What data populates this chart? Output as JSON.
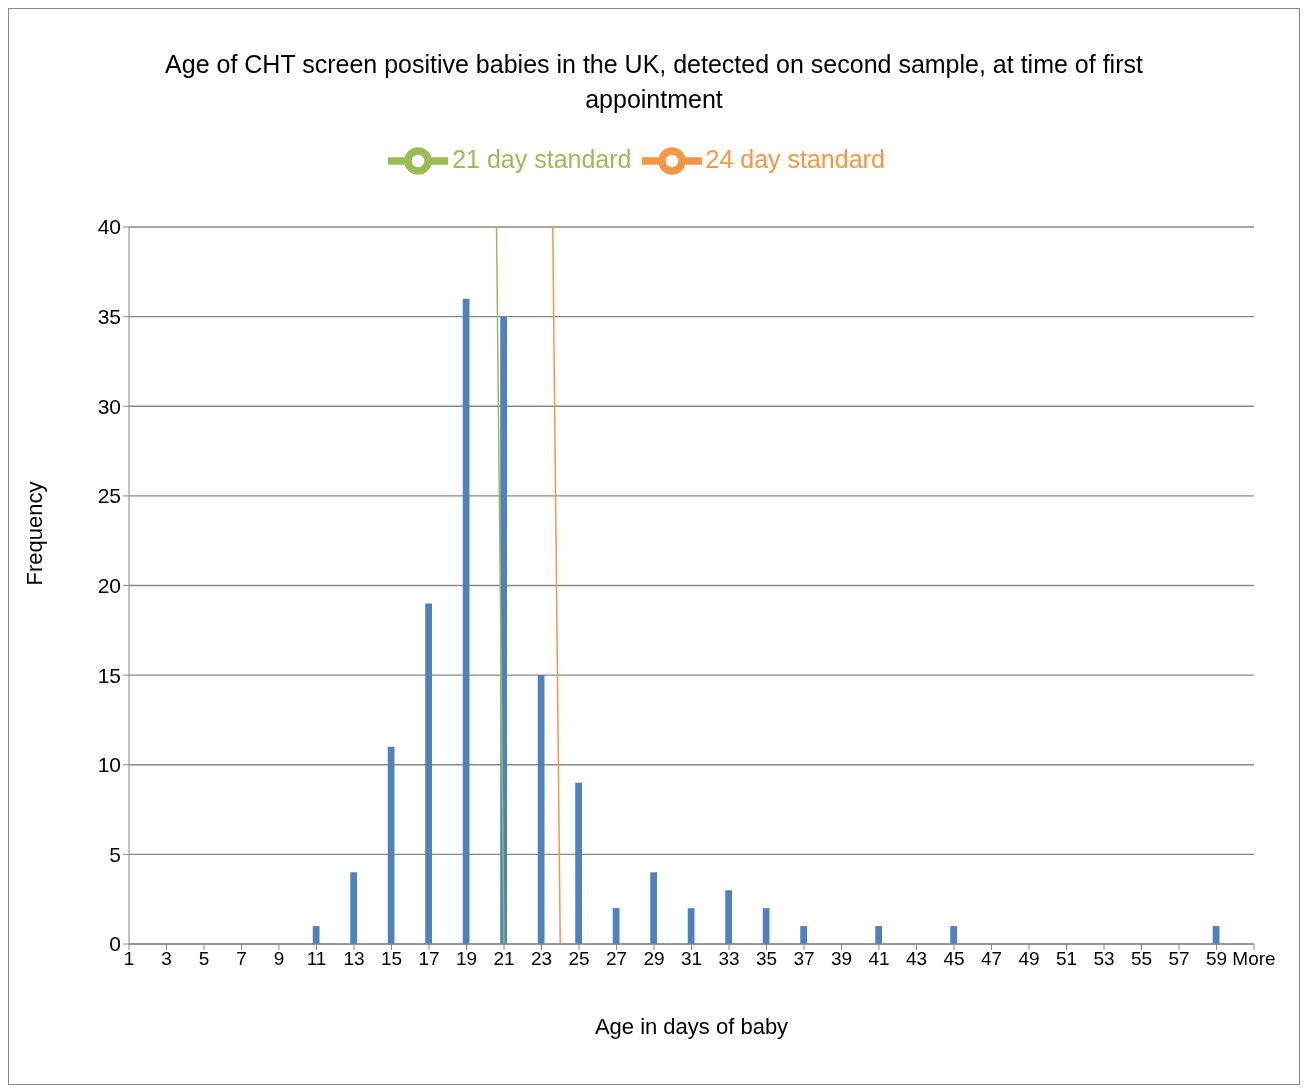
{
  "chart_data": {
    "type": "bar",
    "title": "Age of CHT screen positive babies in the UK, detected on second sample, at time of first appointment",
    "xlabel": "Age in days of baby",
    "ylabel": "Frequency",
    "x": [
      1,
      3,
      5,
      7,
      9,
      11,
      13,
      15,
      17,
      19,
      21,
      23,
      25,
      27,
      29,
      31,
      33,
      35,
      37,
      39,
      41,
      43,
      45,
      47,
      49,
      51,
      53,
      55,
      57,
      59,
      61
    ],
    "values": [
      0,
      0,
      0,
      0,
      0,
      1,
      4,
      11,
      19,
      36,
      35,
      15,
      9,
      2,
      4,
      2,
      3,
      2,
      1,
      0,
      1,
      0,
      1,
      0,
      0,
      0,
      0,
      0,
      0,
      1,
      0
    ],
    "color": "#4f81bd",
    "series": [
      {
        "name": "21 day standard",
        "type": "line",
        "x": [
          21,
          20.6
        ],
        "values": [
          0,
          40
        ],
        "color": "#9bbb59"
      },
      {
        "name": "24 day standard",
        "type": "line",
        "x": [
          24,
          23.6
        ],
        "values": [
          0,
          40
        ],
        "color": "#f79646"
      }
    ],
    "xlim": [
      1,
      61
    ],
    "xticks": [
      1,
      3,
      5,
      7,
      9,
      11,
      13,
      15,
      17,
      19,
      21,
      23,
      25,
      27,
      29,
      31,
      33,
      35,
      37,
      39,
      41,
      43,
      45,
      47,
      49,
      51,
      53,
      55,
      57,
      59,
      {
        "value": 61,
        "label": "More"
      }
    ],
    "ylim": [
      0,
      40
    ],
    "yticks": [
      0,
      5,
      10,
      15,
      20,
      25,
      30,
      35,
      40
    ],
    "grid": "y",
    "legend": "top",
    "marker": "none",
    "line_style": "solid"
  }
}
